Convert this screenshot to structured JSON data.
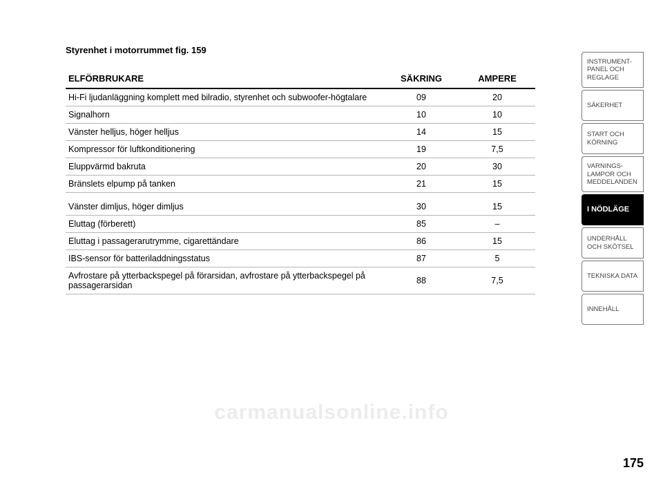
{
  "section_title": "Styrenhet i motorrummet fig. 159",
  "table": {
    "headers": {
      "consumer": "ELFÖRBRUKARE",
      "fuse": "SÄKRING",
      "ampere": "AMPERE"
    },
    "rows": [
      {
        "consumer": "Hi-Fi ljudanläggning komplett med bilradio, styrenhet och subwoofer-högtalare",
        "fuse": "09",
        "ampere": "20"
      },
      {
        "consumer": "Signalhorn",
        "fuse": "10",
        "ampere": "10"
      },
      {
        "consumer": "Vänster helljus, höger helljus",
        "fuse": "14",
        "ampere": "15"
      },
      {
        "consumer": "Kompressor för luftkonditionering",
        "fuse": "19",
        "ampere": "7,5"
      },
      {
        "consumer": "Eluppvärmd bakruta",
        "fuse": "20",
        "ampere": "30"
      },
      {
        "consumer": "Bränslets elpump på tanken",
        "fuse": "21",
        "ampere": "15"
      },
      {
        "consumer": "Vänster dimljus, höger dimljus",
        "fuse": "30",
        "ampere": "15"
      },
      {
        "consumer": "Eluttag (förberett)",
        "fuse": "85",
        "ampere": "–"
      },
      {
        "consumer": "Eluttag i passagerarutrymme, cigarettändare",
        "fuse": "86",
        "ampere": "15"
      },
      {
        "consumer": "IBS-sensor för batteriladdningsstatus",
        "fuse": "87",
        "ampere": "5"
      },
      {
        "consumer": "Avfrostare på ytterbackspegel på förarsidan, avfrostare på ytterbackspegel på passagerarsidan",
        "fuse": "88",
        "ampere": "7,5"
      }
    ],
    "gap_after_index": 5
  },
  "tabs": [
    {
      "label": "INSTRUMENT-\nPANEL OCH\nREGLAGE",
      "active": false
    },
    {
      "label": "SÄKERHET",
      "active": false
    },
    {
      "label": "START OCH\nKÖRNING",
      "active": false
    },
    {
      "label": "VARNINGS-\nLAMPOR OCH\nMEDDELANDEN",
      "active": false
    },
    {
      "label": "I NÖDLÄGE",
      "active": true
    },
    {
      "label": "UNDERHÅLL\nOCH SKÖTSEL",
      "active": false
    },
    {
      "label": "TEKNISKA DATA",
      "active": false
    },
    {
      "label": "INNEHÅLL",
      "active": false
    }
  ],
  "page_number": "175",
  "watermark": "carmanualsonline.info"
}
